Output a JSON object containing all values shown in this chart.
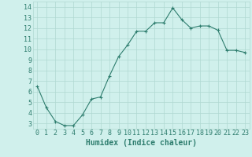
{
  "x": [
    0,
    1,
    2,
    3,
    4,
    5,
    6,
    7,
    8,
    9,
    10,
    11,
    12,
    13,
    14,
    15,
    16,
    17,
    18,
    19,
    20,
    21,
    22,
    23
  ],
  "y": [
    6.5,
    4.5,
    3.2,
    2.8,
    2.8,
    3.8,
    5.3,
    5.5,
    7.5,
    9.3,
    10.4,
    11.7,
    11.7,
    12.5,
    12.5,
    13.9,
    12.8,
    12.0,
    12.2,
    12.2,
    11.8,
    9.9,
    9.9,
    9.7
  ],
  "xlabel": "Humidex (Indice chaleur)",
  "ylim": [
    2.5,
    14.5
  ],
  "xlim": [
    -0.5,
    23.5
  ],
  "yticks": [
    3,
    4,
    5,
    6,
    7,
    8,
    9,
    10,
    11,
    12,
    13,
    14
  ],
  "xticks": [
    0,
    1,
    2,
    3,
    4,
    5,
    6,
    7,
    8,
    9,
    10,
    11,
    12,
    13,
    14,
    15,
    16,
    17,
    18,
    19,
    20,
    21,
    22,
    23
  ],
  "line_color": "#2e7d6e",
  "marker": "+",
  "bg_color": "#d0f0ec",
  "grid_color": "#b0d8d2",
  "axis_color": "#2e7d6e",
  "label_fontsize": 7,
  "tick_fontsize": 6
}
